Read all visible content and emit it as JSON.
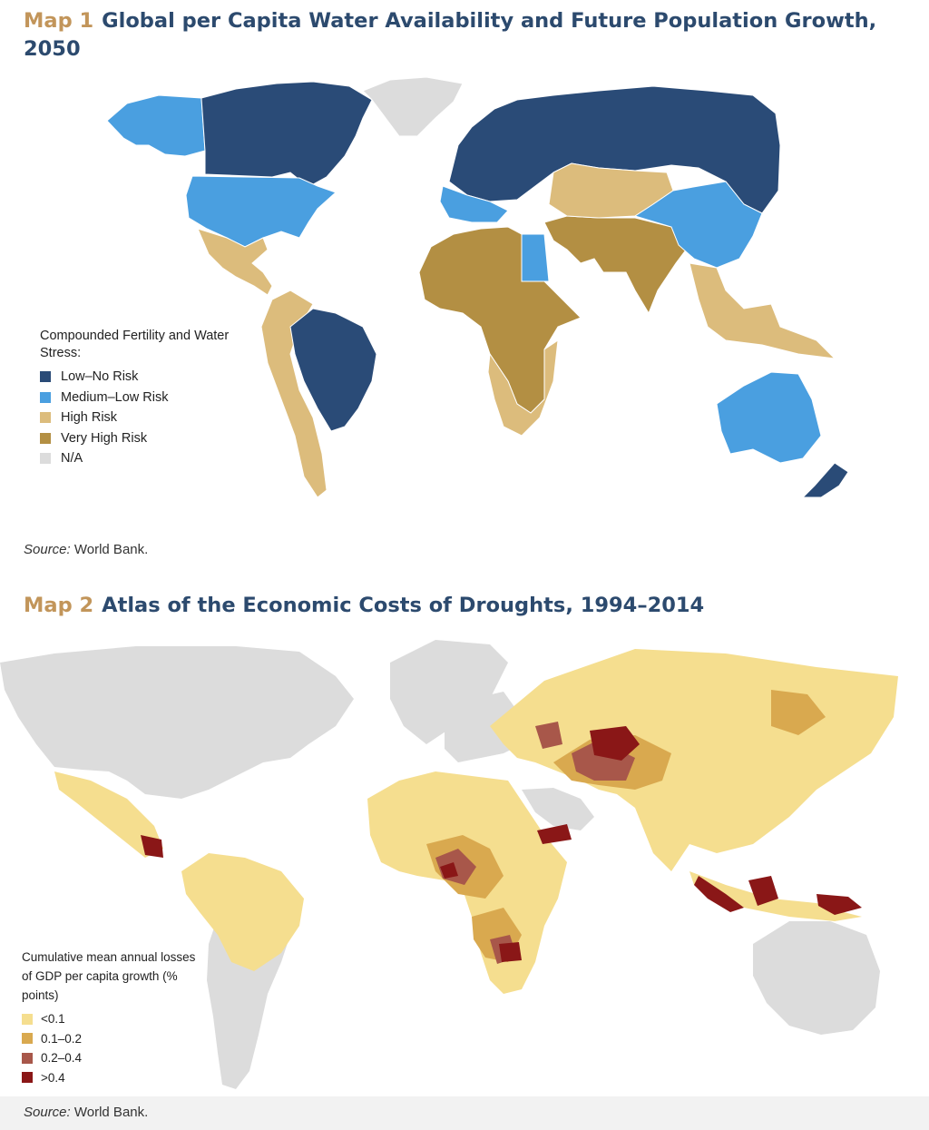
{
  "map1": {
    "label": "Map 1",
    "title": "Global per Capita Water Availability and Future Population Growth, 2050",
    "legend_title": "Compounded Fertility and Water Stress:",
    "categories": [
      {
        "label": "Low–No Risk",
        "color": "#2a4b77"
      },
      {
        "label": "Medium–Low Risk",
        "color": "#4a9fe0"
      },
      {
        "label": "High Risk",
        "color": "#dcbc7c"
      },
      {
        "label": "Very High Risk",
        "color": "#b38f43"
      },
      {
        "label": "N/A",
        "color": "#dcdcdc"
      }
    ],
    "regions": {
      "canada": "Low–No Risk",
      "alaska": "Medium–Low Risk",
      "greenland": "N/A",
      "usa": "Medium–Low Risk",
      "mexico_central_america": "High Risk",
      "brazil": "Low–No Risk",
      "andean_south_america": "High Risk",
      "northern_europe_and_russia": "Low–No Risk",
      "western_europe": "Medium–Low Risk",
      "north_and_west_africa": "Very High Risk",
      "egypt": "Medium–Low Risk",
      "southern_africa": "High Risk",
      "middle_east_and_south_asia": "Very High Risk",
      "central_asia": "High Risk",
      "china": "Medium–Low Risk",
      "southeast_asia": "High Risk",
      "australia": "Medium–Low Risk",
      "new_zealand": "Low–No Risk"
    },
    "source_label": "Source:",
    "source_text": " World Bank."
  },
  "map2": {
    "label": "Map 2",
    "title": "Atlas of the Economic Costs of Droughts, 1994–2014",
    "legend_title": "Cumulative mean annual losses of GDP per capita growth (% points)",
    "categories": [
      {
        "label": "<0.1",
        "color": "#f5de8f"
      },
      {
        "label": "0.1–0.2",
        "color": "#d9a94f"
      },
      {
        "label": "0.2–0.4",
        "color": "#a8574a"
      },
      {
        "label": ">0.4",
        "color": "#8a1717"
      }
    ],
    "no_data_color": "#dcdcdc",
    "hotspots_above_0_4": [
      "Central America",
      "Central Asia",
      "Yemen",
      "Indonesia",
      "Papua New Guinea",
      "Southern Africa",
      "West Africa"
    ],
    "source_label": "Source:",
    "source_text": " World Bank."
  }
}
